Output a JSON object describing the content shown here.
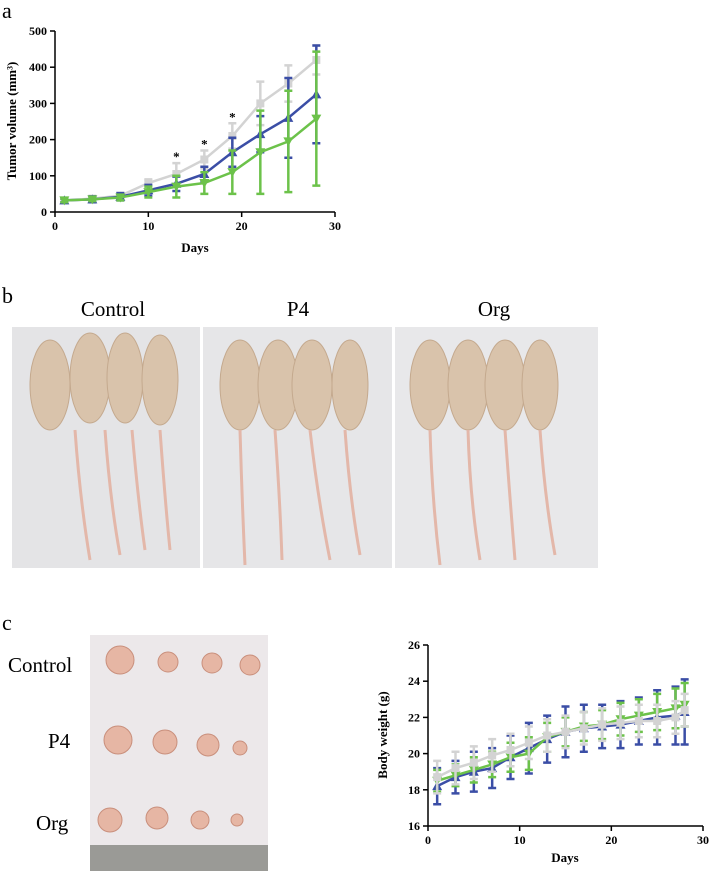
{
  "panel_labels": [
    "a",
    "b",
    "c"
  ],
  "mice_photo": {
    "labels": [
      "Control",
      "P4",
      "Org"
    ]
  },
  "tumor_photo": {
    "labels": [
      "Control",
      "P4",
      "Org"
    ]
  },
  "chart_data": [
    {
      "type": "line",
      "x_label": "Days",
      "y_label": "Tumor volume (mm³)",
      "x": [
        1,
        4,
        7,
        10,
        13,
        16,
        19,
        22,
        25,
        28
      ],
      "xlim": [
        0,
        30
      ],
      "xticks": [
        0,
        10,
        20,
        30
      ],
      "ylim": [
        0,
        500
      ],
      "yticks": [
        0,
        100,
        200,
        300,
        400,
        500
      ],
      "series": [
        {
          "color": "#d3d3d3",
          "marker": "square",
          "values": [
            32,
            37,
            45,
            80,
            105,
            145,
            210,
            300,
            355,
            420
          ],
          "errors": [
            5,
            5,
            8,
            10,
            30,
            25,
            35,
            60,
            50,
            40
          ]
        },
        {
          "color": "#3b4ea6",
          "marker": "triangle",
          "values": [
            32,
            35,
            42,
            60,
            78,
            105,
            165,
            215,
            260,
            325
          ],
          "errors": [
            5,
            8,
            10,
            15,
            20,
            20,
            40,
            50,
            110,
            135
          ]
        },
        {
          "color": "#6cc24a",
          "marker": "triangle-down",
          "values": [
            32,
            35,
            40,
            55,
            70,
            80,
            110,
            165,
            195,
            258
          ],
          "errors": [
            5,
            5,
            8,
            15,
            30,
            30,
            60,
            115,
            140,
            185
          ]
        }
      ],
      "annotations": [
        {
          "text": "*",
          "x": 13
        },
        {
          "text": "*",
          "x": 16
        },
        {
          "text": "*",
          "x": 19
        }
      ]
    },
    {
      "type": "line",
      "x_label": "Days",
      "y_label": "Body weight (g)",
      "x": [
        1,
        3,
        5,
        7,
        9,
        11,
        13,
        15,
        17,
        19,
        21,
        23,
        25,
        27,
        28
      ],
      "xlim": [
        0,
        30
      ],
      "xticks": [
        0,
        10,
        20,
        30
      ],
      "ylim": [
        16,
        26
      ],
      "yticks": [
        16,
        18,
        20,
        22,
        24,
        26
      ],
      "series": [
        {
          "color": "#3b4ea6",
          "marker": "triangle",
          "values": [
            18.2,
            18.7,
            19.0,
            19.2,
            19.8,
            20.3,
            20.8,
            21.2,
            21.4,
            21.5,
            21.6,
            21.8,
            22.0,
            22.1,
            22.3
          ],
          "errors": [
            1.0,
            0.9,
            1.1,
            1.1,
            1.2,
            1.4,
            1.3,
            1.4,
            1.3,
            1.2,
            1.3,
            1.3,
            1.5,
            1.6,
            1.8
          ]
        },
        {
          "color": "#6cc24a",
          "marker": "triangle-down",
          "values": [
            18.5,
            18.8,
            19.1,
            19.4,
            19.8,
            20.0,
            20.9,
            21.2,
            21.5,
            21.6,
            21.9,
            22.1,
            22.3,
            22.5,
            22.7
          ],
          "errors": [
            0.6,
            0.6,
            0.7,
            0.7,
            0.8,
            0.9,
            0.8,
            0.8,
            0.8,
            0.8,
            0.9,
            0.9,
            1.0,
            1.1,
            1.2
          ]
        },
        {
          "color": "#d3d3d3",
          "marker": "square",
          "values": [
            18.7,
            19.2,
            19.5,
            19.9,
            20.2,
            20.6,
            21.0,
            21.2,
            21.4,
            21.6,
            21.7,
            21.8,
            21.8,
            22.0,
            22.4
          ],
          "errors": [
            0.9,
            0.9,
            0.9,
            0.9,
            0.9,
            0.9,
            0.9,
            0.9,
            0.9,
            0.9,
            0.9,
            0.9,
            0.9,
            0.9,
            0.9
          ]
        }
      ]
    }
  ]
}
